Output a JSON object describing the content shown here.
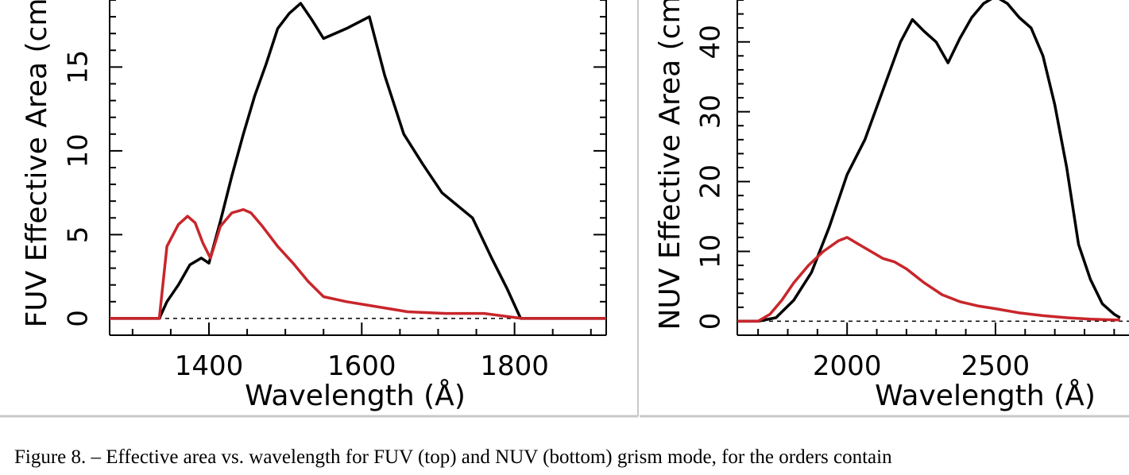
{
  "colors": {
    "order1": "#000000",
    "order2": "#c8262b",
    "frame": "#c8c8c8"
  },
  "chart_data": [
    {
      "type": "line",
      "xlabel": "Wavelength (Å)",
      "ylabel": "FUV Effective Area (cm",
      "x_ticks": [
        1400,
        1600,
        1800
      ],
      "y_ticks": [
        0,
        5,
        10,
        15
      ],
      "xlim": [
        1270,
        1920
      ],
      "ylim": [
        -1,
        19
      ],
      "baseline": 0,
      "series": [
        {
          "style": "black",
          "x": [
            1335,
            1345,
            1360,
            1375,
            1390,
            1400,
            1415,
            1430,
            1445,
            1460,
            1475,
            1490,
            1505,
            1520,
            1535,
            1550,
            1580,
            1610,
            1630,
            1655,
            1680,
            1705,
            1745,
            1770,
            1790,
            1808
          ],
          "y": [
            0,
            1.0,
            2.0,
            3.2,
            3.6,
            3.3,
            5.8,
            8.5,
            11.0,
            13.3,
            15.2,
            17.3,
            18.2,
            18.8,
            17.8,
            16.7,
            17.3,
            18.0,
            14.5,
            11.0,
            9.2,
            7.5,
            6.0,
            3.6,
            1.8,
            0
          ]
        },
        {
          "style": "red",
          "x": [
            1335,
            1345,
            1360,
            1372,
            1382,
            1392,
            1402,
            1415,
            1430,
            1445,
            1455,
            1470,
            1490,
            1510,
            1530,
            1550,
            1580,
            1620,
            1660,
            1710,
            1760,
            1810
          ],
          "y": [
            0,
            4.3,
            5.6,
            6.1,
            5.7,
            4.5,
            3.6,
            5.5,
            6.3,
            6.5,
            6.3,
            5.5,
            4.3,
            3.3,
            2.2,
            1.3,
            1.0,
            0.7,
            0.4,
            0.3,
            0.3,
            0
          ]
        }
      ]
    },
    {
      "type": "line",
      "xlabel": "Wavelength (Å)",
      "ylabel": "NUV Effective Area (cm",
      "x_ticks": [
        2000,
        2500
      ],
      "y_ticks": [
        0,
        10,
        20,
        30,
        40
      ],
      "xlim": [
        1630,
        2950
      ],
      "ylim": [
        -2,
        46
      ],
      "baseline": 0,
      "series": [
        {
          "style": "black",
          "x": [
            1700,
            1760,
            1820,
            1880,
            1940,
            2000,
            2060,
            2120,
            2180,
            2220,
            2260,
            2300,
            2340,
            2380,
            2420,
            2460,
            2500,
            2540,
            2580,
            2620,
            2660,
            2700,
            2740,
            2780,
            2820,
            2860,
            2900,
            2920
          ],
          "y": [
            0,
            0.5,
            3.0,
            7.0,
            13.5,
            21.0,
            26.0,
            33.0,
            40.0,
            43.2,
            41.5,
            40.0,
            37.0,
            40.5,
            43.5,
            45.5,
            46.5,
            45.5,
            43.5,
            42.0,
            38.0,
            31.0,
            22.0,
            11.0,
            6.0,
            2.5,
            1.0,
            0.5
          ]
        },
        {
          "style": "red",
          "x": [
            1700,
            1740,
            1780,
            1820,
            1870,
            1920,
            1970,
            2000,
            2040,
            2080,
            2120,
            2160,
            2200,
            2260,
            2320,
            2380,
            2440,
            2500,
            2580,
            2660,
            2740,
            2820,
            2900,
            2920
          ],
          "y": [
            0,
            1.0,
            3.0,
            5.5,
            8.0,
            10.0,
            11.5,
            12.0,
            11.0,
            10.0,
            9.0,
            8.5,
            7.5,
            5.5,
            3.8,
            2.8,
            2.2,
            1.8,
            1.2,
            0.8,
            0.5,
            0.3,
            0.2,
            0.2
          ]
        }
      ]
    }
  ],
  "caption": "Figure 8. – Effective area vs. wavelength for FUV (top) and NUV (bottom) grism mode, for the orders contain"
}
